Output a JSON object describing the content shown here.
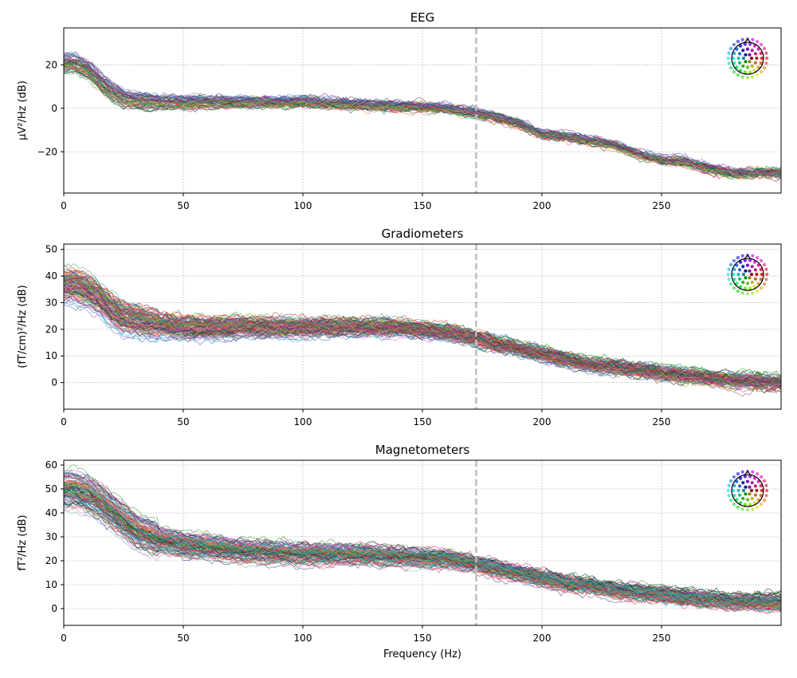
{
  "figure": {
    "xlabel": "Frequency (Hz)"
  },
  "chart_data": [
    {
      "type": "line",
      "title": "EEG",
      "xlabel": "",
      "ylabel": "µV²/Hz (dB)",
      "xlim": [
        0,
        300
      ],
      "ylim": [
        -39,
        37
      ],
      "xticks": [
        0,
        50,
        100,
        150,
        200,
        250
      ],
      "yticks": [
        -20,
        0,
        20
      ],
      "grid": true,
      "vline": 172.5,
      "n_traces": 60,
      "trace_spread_db": 2.5,
      "sensor_inset": "top-right",
      "mean_trace": {
        "x": [
          0,
          5,
          10,
          15,
          20,
          25,
          30,
          40,
          50,
          60,
          80,
          100,
          120,
          140,
          160,
          172,
          180,
          190,
          200,
          210,
          220,
          230,
          240,
          250,
          260,
          270,
          280,
          290,
          300
        ],
        "y": [
          21,
          21,
          18,
          13,
          8,
          5,
          4,
          3,
          3,
          3,
          3,
          3,
          2,
          1,
          0,
          -2,
          -4,
          -7,
          -12,
          -13,
          -15,
          -17,
          -21,
          -24,
          -25,
          -28,
          -30,
          -30,
          -30
        ]
      }
    },
    {
      "type": "line",
      "title": "Gradiometers",
      "xlabel": "",
      "ylabel": "(fT/cm)²/Hz (dB)",
      "xlim": [
        0,
        300
      ],
      "ylim": [
        -10,
        52
      ],
      "xticks": [
        0,
        50,
        100,
        150,
        200,
        250
      ],
      "yticks": [
        0,
        10,
        20,
        30,
        40,
        50
      ],
      "grid": true,
      "vline": 172.5,
      "n_traces": 100,
      "trace_spread_db": 3.5,
      "sensor_inset": "top-right",
      "mean_trace": {
        "x": [
          0,
          5,
          10,
          15,
          20,
          25,
          30,
          40,
          50,
          60,
          80,
          100,
          120,
          140,
          160,
          172,
          180,
          190,
          200,
          210,
          220,
          230,
          240,
          250,
          260,
          270,
          280,
          290,
          300
        ],
        "y": [
          37,
          37,
          35,
          32,
          28,
          25,
          24,
          22,
          21,
          21,
          21,
          21,
          21,
          21,
          19,
          17,
          15,
          13,
          11,
          9,
          7,
          6,
          5,
          4,
          3,
          2,
          1,
          1,
          0
        ]
      }
    },
    {
      "type": "line",
      "title": "Magnetometers",
      "xlabel": "Frequency (Hz)",
      "ylabel": "fT²/Hz (dB)",
      "xlim": [
        0,
        300
      ],
      "ylim": [
        -7,
        62
      ],
      "xticks": [
        0,
        50,
        100,
        150,
        200,
        250
      ],
      "yticks": [
        0,
        10,
        20,
        30,
        40,
        50,
        60
      ],
      "grid": true,
      "vline": 172.5,
      "n_traces": 100,
      "trace_spread_db": 4,
      "sensor_inset": "top-right",
      "mean_trace": {
        "x": [
          0,
          5,
          10,
          15,
          20,
          25,
          30,
          40,
          50,
          60,
          80,
          100,
          120,
          140,
          160,
          172,
          180,
          190,
          200,
          210,
          220,
          230,
          240,
          250,
          260,
          270,
          280,
          290,
          300
        ],
        "y": [
          50,
          50,
          48,
          45,
          41,
          37,
          33,
          29,
          27,
          26,
          24,
          23,
          23,
          22,
          21,
          19,
          17,
          15,
          13,
          11,
          10,
          8,
          7,
          6,
          5,
          4,
          3,
          3,
          3
        ]
      }
    }
  ]
}
